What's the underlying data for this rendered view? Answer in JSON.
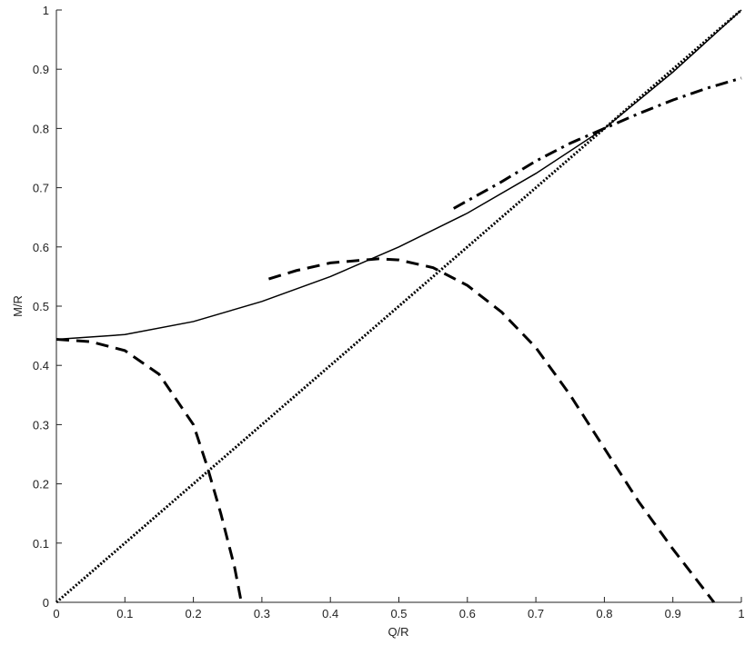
{
  "chart_data": {
    "type": "line",
    "xlabel": "Q/R",
    "ylabel": "M/R",
    "xlim": [
      0,
      1
    ],
    "ylim": [
      0,
      1
    ],
    "xticks": [
      0,
      0.1,
      0.2,
      0.3,
      0.4,
      0.5,
      0.6,
      0.7,
      0.8,
      0.9,
      1
    ],
    "yticks": [
      0,
      0.1,
      0.2,
      0.3,
      0.4,
      0.5,
      0.6,
      0.7,
      0.8,
      0.9,
      1
    ],
    "grid": false,
    "series": [
      {
        "color": "#000000",
        "style": "solid",
        "x": [
          0,
          0.1,
          0.2,
          0.3,
          0.4,
          0.5,
          0.6,
          0.7,
          0.8,
          0.9,
          1
        ],
        "values": [
          0.444,
          0.452,
          0.474,
          0.508,
          0.55,
          0.6,
          0.657,
          0.724,
          0.8,
          0.895,
          1
        ]
      },
      {
        "color": "#000000",
        "style": "dotted",
        "x": [
          0,
          1
        ],
        "values": [
          0,
          1
        ]
      },
      {
        "color": "#000000",
        "style": "dashed",
        "x": [
          0,
          0.05,
          0.1,
          0.15,
          0.2,
          0.22,
          0.24,
          0.26,
          0.27
        ],
        "values": [
          0.444,
          0.44,
          0.425,
          0.385,
          0.3,
          0.23,
          0.15,
          0.06,
          0
        ]
      },
      {
        "color": "#000000",
        "style": "dashed",
        "x": [
          0.31,
          0.35,
          0.4,
          0.47,
          0.5,
          0.55,
          0.6,
          0.65,
          0.7,
          0.75,
          0.8,
          0.85,
          0.9,
          0.94,
          0.96
        ],
        "values": [
          0.546,
          0.56,
          0.573,
          0.58,
          0.578,
          0.565,
          0.535,
          0.49,
          0.43,
          0.35,
          0.26,
          0.17,
          0.09,
          0.03,
          0
        ]
      },
      {
        "color": "#000000",
        "style": "dashdot",
        "x": [
          0.58,
          0.65,
          0.7,
          0.75,
          0.8,
          0.85,
          0.9,
          0.95,
          1
        ],
        "values": [
          0.665,
          0.71,
          0.745,
          0.775,
          0.8,
          0.825,
          0.848,
          0.868,
          0.885
        ]
      }
    ]
  }
}
